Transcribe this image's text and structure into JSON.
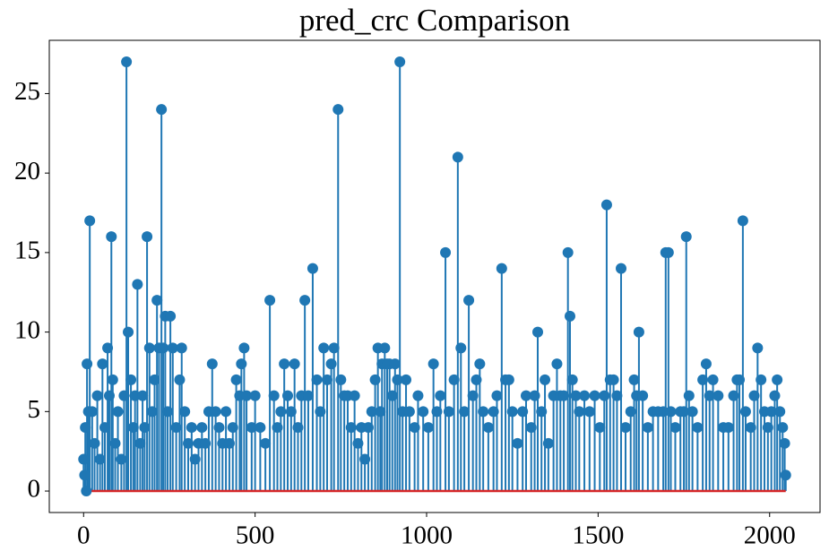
{
  "chart_data": {
    "type": "stem",
    "title": "pred_crc Comparison",
    "color": "#1f77b4",
    "baseline_color": "#d62728",
    "xlim": [
      -100,
      2147
    ],
    "ylim": [
      -1.35,
      28.35
    ],
    "xticks": [
      0,
      500,
      1000,
      1500,
      2000
    ],
    "yticks": [
      0,
      5,
      10,
      15,
      20,
      25
    ],
    "x": [
      0,
      3,
      5,
      8,
      10,
      14,
      18,
      25,
      32,
      40,
      48,
      55,
      62,
      70,
      75,
      81,
      85,
      92,
      100,
      110,
      118,
      125,
      130,
      138,
      145,
      150,
      157,
      165,
      172,
      178,
      185,
      192,
      200,
      207,
      214,
      220,
      227,
      232,
      238,
      245,
      253,
      260,
      270,
      280,
      286,
      295,
      305,
      315,
      325,
      335,
      345,
      355,
      365,
      375,
      385,
      395,
      405,
      415,
      425,
      435,
      445,
      455,
      460,
      468,
      475,
      490,
      500,
      515,
      530,
      543,
      555,
      565,
      575,
      585,
      595,
      605,
      615,
      625,
      635,
      645,
      655,
      668,
      680,
      690,
      700,
      710,
      722,
      730,
      742,
      750,
      760,
      770,
      780,
      790,
      800,
      810,
      820,
      830,
      840,
      850,
      858,
      865,
      870,
      878,
      885,
      892,
      900,
      908,
      915,
      922,
      930,
      940,
      950,
      965,
      975,
      990,
      1005,
      1020,
      1030,
      1040,
      1055,
      1065,
      1080,
      1091,
      1100,
      1110,
      1123,
      1135,
      1145,
      1155,
      1165,
      1180,
      1195,
      1205,
      1219,
      1230,
      1240,
      1250,
      1265,
      1280,
      1290,
      1305,
      1315,
      1324,
      1335,
      1345,
      1355,
      1370,
      1380,
      1390,
      1400,
      1412,
      1418,
      1425,
      1435,
      1445,
      1460,
      1475,
      1490,
      1505,
      1518,
      1525,
      1535,
      1545,
      1555,
      1567,
      1580,
      1595,
      1605,
      1612,
      1619,
      1630,
      1645,
      1660,
      1675,
      1690,
      1697,
      1705,
      1712,
      1725,
      1740,
      1750,
      1757,
      1765,
      1775,
      1790,
      1805,
      1815,
      1825,
      1835,
      1850,
      1865,
      1880,
      1895,
      1905,
      1912,
      1922,
      1930,
      1945,
      1955,
      1965,
      1975,
      1985,
      1995,
      2005,
      2015,
      2022,
      2030,
      2038,
      2044,
      2047
    ],
    "values": [
      2,
      1,
      4,
      0,
      8,
      5,
      17,
      5,
      3,
      6,
      2,
      8,
      4,
      9,
      6,
      16,
      7,
      3,
      5,
      2,
      6,
      27,
      10,
      7,
      4,
      6,
      13,
      3,
      6,
      4,
      16,
      9,
      5,
      7,
      12,
      9,
      24,
      9,
      11,
      5,
      11,
      9,
      4,
      7,
      9,
      5,
      3,
      4,
      2,
      3,
      4,
      3,
      5,
      8,
      5,
      4,
      3,
      5,
      3,
      4,
      7,
      6,
      8,
      9,
      6,
      4,
      6,
      4,
      3,
      12,
      6,
      4,
      5,
      8,
      6,
      5,
      8,
      4,
      6,
      12,
      6,
      14,
      7,
      5,
      9,
      7,
      8,
      9,
      24,
      7,
      6,
      6,
      4,
      6,
      3,
      4,
      2,
      4,
      5,
      7,
      9,
      5,
      8,
      9,
      8,
      8,
      6,
      8,
      7,
      27,
      5,
      7,
      5,
      4,
      6,
      5,
      4,
      8,
      5,
      6,
      15,
      5,
      7,
      21,
      9,
      5,
      12,
      6,
      7,
      8,
      5,
      4,
      5,
      6,
      14,
      7,
      7,
      5,
      3,
      5,
      6,
      4,
      6,
      10,
      5,
      7,
      3,
      6,
      8,
      6,
      6,
      15,
      11,
      7,
      6,
      5,
      6,
      5,
      6,
      4,
      6,
      18,
      7,
      7,
      6,
      14,
      4,
      5,
      7,
      6,
      10,
      6,
      4,
      5,
      5,
      5,
      15,
      15,
      5,
      4,
      5,
      5,
      16,
      6,
      5,
      4,
      7,
      8,
      6,
      7,
      6,
      4,
      4,
      6,
      7,
      7,
      17,
      5,
      4,
      6,
      9,
      7,
      5,
      4,
      5,
      6,
      7,
      5,
      4,
      3,
      1
    ]
  }
}
